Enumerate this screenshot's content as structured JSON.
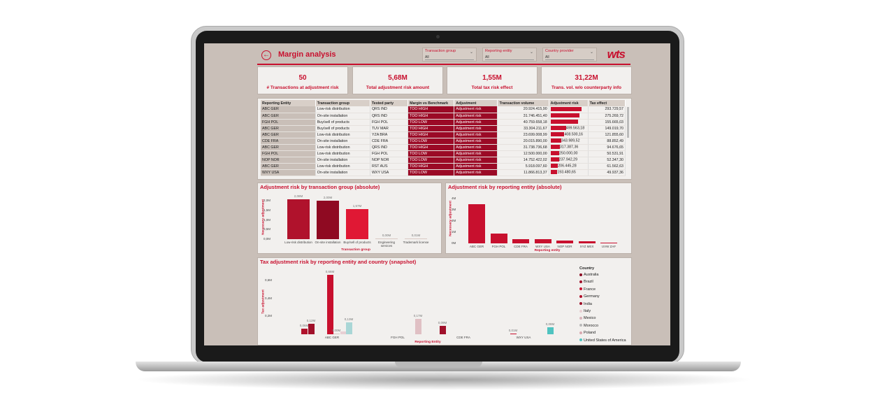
{
  "header": {
    "title": "Margin analysis",
    "logo": "wts",
    "back_icon": "arrow-left-icon",
    "slicers": [
      {
        "label": "Transaction group",
        "value": "All"
      },
      {
        "label": "Reporting entity",
        "value": "All"
      },
      {
        "label": "Country provider",
        "value": "All"
      }
    ]
  },
  "kpis": [
    {
      "value": "50",
      "label": "# Transactions at adjustment risk"
    },
    {
      "value": "5,68M",
      "label": "Total adjustment risk amount"
    },
    {
      "value": "1,55M",
      "label": "Total tax risk effect"
    },
    {
      "value": "31,22M",
      "label": "Trans. vol. w/o counterparty info"
    }
  ],
  "table": {
    "columns": [
      "Reporting Entity",
      "Transaction group",
      "Tested party",
      "Margin vs Benchmark",
      "Adjustment",
      "Transaction volume",
      "Adjustment risk",
      "Tax effect"
    ],
    "rows": [
      {
        "entity": "ABC GER",
        "group": "Low-risk distribution",
        "party": "QRS IND",
        "margin": "TOO HIGH",
        "adj": "Adjustment risk",
        "volume": "20.924.415,90",
        "risk": "",
        "risk_pct": 1.0,
        "tax": "293.729,57"
      },
      {
        "entity": "ABC GER",
        "group": "On-site installation",
        "party": "QRS IND",
        "margin": "TOO HIGH",
        "adj": "Adjustment risk",
        "volume": "31.746.451,40",
        "risk": "",
        "risk_pct": 0.95,
        "tax": "275.269,72"
      },
      {
        "entity": "FGH POL",
        "group": "Buy/sell of products",
        "party": "FGH POL",
        "margin": "TOO LOW",
        "adj": "Adjustment risk",
        "volume": "40.759.658,18",
        "risk": "",
        "risk_pct": 0.9,
        "tax": "155.665,03"
      },
      {
        "entity": "ABC GER",
        "group": "Buy/sell of products",
        "party": "TUV MAR",
        "margin": "TOO HIGH",
        "adj": "Adjustment risk",
        "volume": "33.304.211,67",
        "risk": "499.563,18",
        "risk_pct": 0.5,
        "tax": "149.019,70"
      },
      {
        "entity": "ABC GER",
        "group": "Low-risk distribution",
        "party": "YZA BRA",
        "margin": "TOO HIGH",
        "adj": "Adjustment risk",
        "volume": "23.699.008,99",
        "risk": "408.500,16",
        "risk_pct": 0.45,
        "tax": "121.855,60"
      },
      {
        "entity": "CDE FRA",
        "group": "On-site installation",
        "party": "CDE FRA",
        "margin": "TOO LOW",
        "adj": "Adjustment risk",
        "volume": "20.015.890,00",
        "risk": "343.989,52",
        "risk_pct": 0.35,
        "tax": "88.852,49"
      },
      {
        "entity": "ABC GER",
        "group": "Low-risk distribution",
        "party": "QRS IND",
        "margin": "TOO HIGH",
        "adj": "Adjustment risk",
        "volume": "31.738.736,68",
        "risk": "317.387,36",
        "risk_pct": 0.3,
        "tax": "94.676,65"
      },
      {
        "entity": "FGH POL",
        "group": "Low-risk distribution",
        "party": "FGH POL",
        "margin": "TOO LOW",
        "adj": "Adjustment risk",
        "volume": "12.500.000,00",
        "risk": "250.000,00",
        "risk_pct": 0.28,
        "tax": "50.531,91"
      },
      {
        "entity": "NOP NOR",
        "group": "On-site installation",
        "party": "NOP NOR",
        "margin": "TOO LOW",
        "adj": "Adjustment risk",
        "volume": "14.752.422,02",
        "risk": "237.942,29",
        "risk_pct": 0.27,
        "tax": "52.347,30"
      },
      {
        "entity": "ABC GER",
        "group": "Low-risk distribution",
        "party": "RST AUS",
        "margin": "TOO HIGH",
        "adj": "Adjustment risk",
        "volume": "5.918.097,60",
        "risk": "206.445,28",
        "risk_pct": 0.24,
        "tax": "61.562,63"
      },
      {
        "entity": "WXY USA",
        "group": "On-site installation",
        "party": "WXY USA",
        "margin": "TOO LOW",
        "adj": "Adjustment risk",
        "volume": "11.866.813,37",
        "risk": "193.480,65",
        "risk_pct": 0.22,
        "tax": "49.937,36"
      }
    ]
  },
  "chart_data": [
    {
      "type": "bar",
      "title": "Adjustment risk by transaction group (absolute)",
      "xlabel": "Transaction group",
      "ylabel": "Necessary adjustment",
      "categories": [
        "Low-risk distribution",
        "On-site installation",
        "Buy/sell of products",
        "Engineering services",
        "Trademark license"
      ],
      "values": [
        2.08,
        2.0,
        1.57,
        0.0,
        0.01
      ],
      "labels": [
        "2,08M",
        "2,00M",
        "1,57M",
        "0,00M",
        "0,01M"
      ],
      "yticks": [
        "2,0M",
        "1,5M",
        "1,0M",
        "0,5M",
        "0,0M"
      ],
      "ylim": [
        0,
        2.2
      ]
    },
    {
      "type": "bar",
      "title": "Adjustment risk by reporting entity (absolute)",
      "xlabel": "Reporting entity",
      "ylabel": "Necessary adjustment",
      "categories": [
        "ABC GER",
        "FGH POL",
        "CDE FRA",
        "WXY USA",
        "NOP NOR",
        "XYZ MEX",
        "UVW ZAF"
      ],
      "values": [
        3.5,
        0.9,
        0.35,
        0.35,
        0.25,
        0.2,
        0.02
      ],
      "yticks": [
        "4M",
        "3M",
        "2M",
        "1M",
        "0M"
      ],
      "ylim": [
        0,
        4
      ]
    },
    {
      "type": "bar",
      "title": "Tax adjustment risk by reporting entity and country (snapshot)",
      "xlabel": "Reporting Entity",
      "ylabel": "Tax adjustment",
      "categories": [
        "ABC GER",
        "FGH POL",
        "CDE FRA",
        "WXY USA"
      ],
      "series_labels": [
        "0,06M",
        "0,12M",
        "0,66M",
        "0,00M",
        "0,13M",
        "0,17M",
        "0,09M",
        "0,01M",
        "0,08M"
      ],
      "yticks": [
        "0,6M",
        "0,4M",
        "0,2M"
      ],
      "ylim": [
        0,
        0.7
      ],
      "legend_title": "Country",
      "legend": [
        {
          "name": "Australia",
          "color": "#8b0a22"
        },
        {
          "name": "Brazil",
          "color": "#a0102a"
        },
        {
          "name": "France",
          "color": "#c8102e"
        },
        {
          "name": "Germany",
          "color": "#b00c28"
        },
        {
          "name": "India",
          "color": "#9b0a26"
        },
        {
          "name": "Italy",
          "color": "#e8cfd3"
        },
        {
          "name": "Mexico",
          "color": "#d9b3ba"
        },
        {
          "name": "Morocco",
          "color": "#b9b9b9"
        },
        {
          "name": "Poland",
          "color": "#d9a9b0"
        },
        {
          "name": "United States of America",
          "color": "#4fc3c0"
        }
      ]
    }
  ]
}
